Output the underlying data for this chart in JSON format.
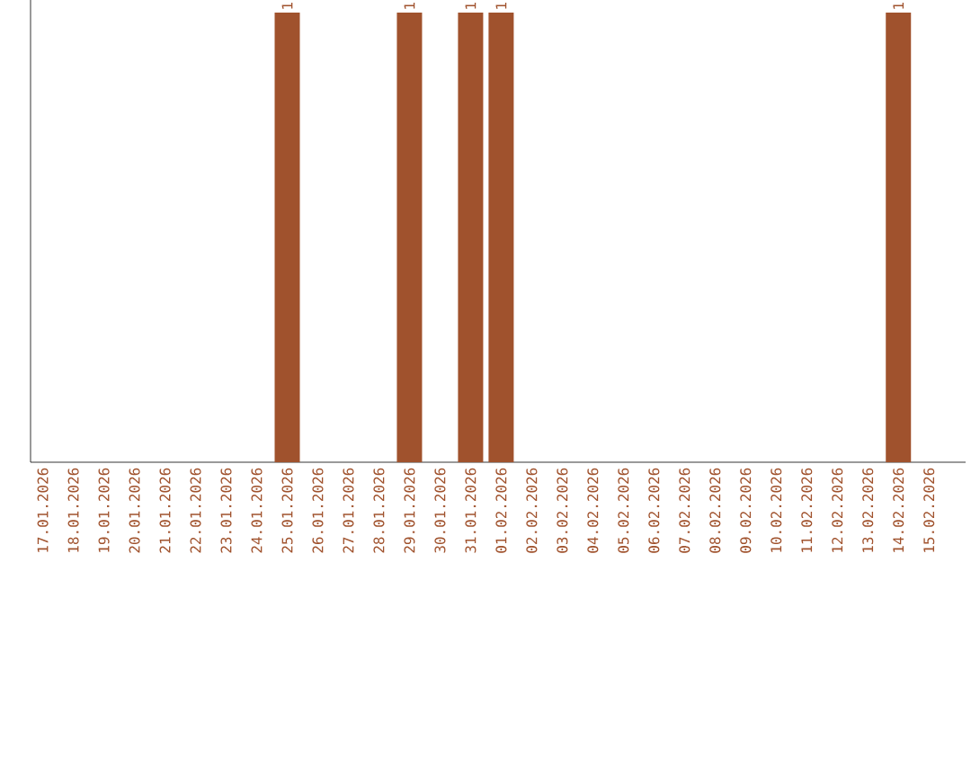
{
  "chart_data": {
    "type": "bar",
    "categories": [
      "17.01.2026",
      "18.01.2026",
      "19.01.2026",
      "20.01.2026",
      "21.01.2026",
      "22.01.2026",
      "23.01.2026",
      "24.01.2026",
      "25.01.2026",
      "26.01.2026",
      "27.01.2026",
      "28.01.2026",
      "29.01.2026",
      "30.01.2026",
      "31.01.2026",
      "01.02.2026",
      "02.02.2026",
      "03.02.2026",
      "04.02.2026",
      "05.02.2026",
      "06.02.2026",
      "07.02.2026",
      "08.02.2026",
      "09.02.2026",
      "10.02.2026",
      "11.02.2026",
      "12.02.2026",
      "13.02.2026",
      "14.02.2026",
      "15.02.2026"
    ],
    "values": [
      0,
      0,
      0,
      0,
      0,
      0,
      0,
      0,
      1,
      0,
      0,
      0,
      1,
      0,
      1,
      1,
      0,
      0,
      0,
      0,
      0,
      0,
      0,
      0,
      0,
      0,
      0,
      0,
      1,
      0
    ],
    "value_labels": [
      null,
      null,
      null,
      null,
      null,
      null,
      null,
      null,
      "1",
      null,
      null,
      null,
      "1",
      null,
      "1",
      "1",
      null,
      null,
      null,
      null,
      null,
      null,
      null,
      null,
      null,
      null,
      null,
      null,
      "1",
      null
    ],
    "color": "#a0522d",
    "ylim": [
      0,
      1
    ],
    "tick_labels": "x",
    "grid": false
  }
}
